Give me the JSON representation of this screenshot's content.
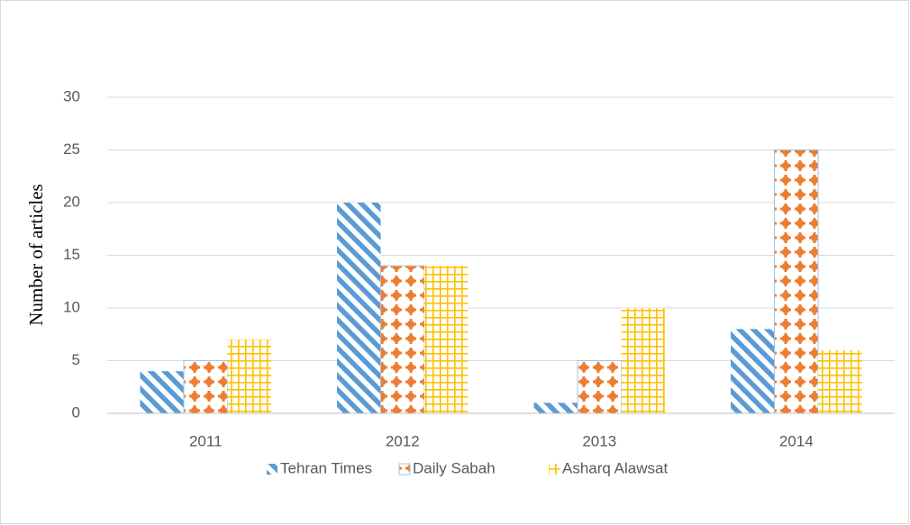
{
  "chart_data": {
    "type": "bar",
    "y_label": "Number of articles",
    "categories": [
      "2011",
      "2012",
      "2013",
      "2014"
    ],
    "series": [
      {
        "name": "Tehran Times",
        "color": "#5b9bd5",
        "values": [
          4,
          20,
          1,
          8
        ]
      },
      {
        "name": "Daily Sabah",
        "color": "#ed7d31",
        "values": [
          5,
          14,
          5,
          25
        ]
      },
      {
        "name": "Asharq Alawsat",
        "color": "#ffc000",
        "values": [
          7,
          14,
          10,
          6
        ]
      }
    ],
    "ylim": [
      0,
      30
    ],
    "yticks": [
      0,
      5,
      10,
      15,
      20,
      25,
      30
    ],
    "grid": true,
    "legend": "bottom"
  }
}
